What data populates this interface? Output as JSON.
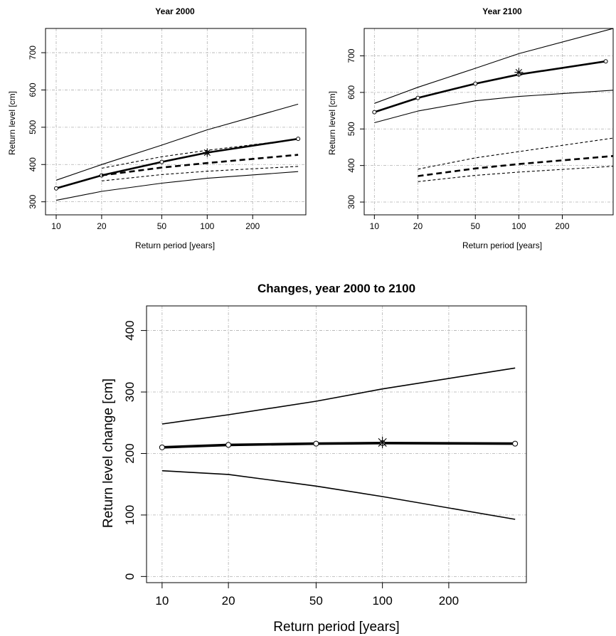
{
  "chart_data": [
    {
      "type": "line",
      "title": "Year 2000",
      "xlabel": "Return period [years]",
      "ylabel": "Return level [cm]",
      "xscale": "log",
      "xlim": [
        8.5,
        450
      ],
      "ylim": [
        265,
        765
      ],
      "xticks": [
        10,
        20,
        50,
        100,
        200
      ],
      "yticks": [
        300,
        400,
        500,
        600,
        700
      ],
      "grid": true,
      "series": [
        {
          "style": "thick-solid-circles",
          "x": [
            10,
            20,
            50,
            100,
            400
          ],
          "y": [
            336,
            371,
            407,
            432,
            469
          ]
        },
        {
          "style": "thin-solid",
          "x": [
            10,
            20,
            50,
            100,
            400
          ],
          "y": [
            358,
            400,
            452,
            493,
            562
          ]
        },
        {
          "style": "thin-solid",
          "x": [
            10,
            20,
            50,
            100,
            400
          ],
          "y": [
            304,
            328,
            350,
            363,
            381
          ]
        },
        {
          "style": "thick-dashed",
          "x": [
            20,
            50,
            100,
            400
          ],
          "y": [
            371,
            392,
            404,
            426
          ]
        },
        {
          "style": "thin-dashed",
          "x": [
            20,
            50,
            100,
            400
          ],
          "y": [
            390,
            421,
            438,
            468
          ]
        },
        {
          "style": "thin-dashed",
          "x": [
            20,
            50,
            100,
            400
          ],
          "y": [
            356,
            373,
            382,
            395
          ]
        }
      ],
      "marker": {
        "symbol": "asterisk",
        "x": 100,
        "y": 432
      }
    },
    {
      "type": "line",
      "title": "Year 2100",
      "xlabel": "Return period [years]",
      "ylabel": "Return level [cm]",
      "xscale": "log",
      "xlim": [
        8.5,
        450
      ],
      "ylim": [
        265,
        775
      ],
      "xticks": [
        10,
        20,
        50,
        100,
        200
      ],
      "yticks": [
        300,
        400,
        500,
        600,
        700
      ],
      "grid": true,
      "series": [
        {
          "style": "thick-solid-circles",
          "x": [
            10,
            20,
            50,
            100,
            400
          ],
          "y": [
            546,
            585,
            624,
            649,
            685
          ]
        },
        {
          "style": "thin-solid",
          "x": [
            10,
            20,
            50,
            100,
            450
          ],
          "y": [
            570,
            614,
            666,
            706,
            775
          ]
        },
        {
          "style": "thin-solid",
          "x": [
            10,
            20,
            50,
            100,
            450
          ],
          "y": [
            517,
            549,
            577,
            589,
            606
          ]
        },
        {
          "style": "thick-dashed",
          "x": [
            20,
            50,
            100,
            450
          ],
          "y": [
            371,
            392,
            404,
            426
          ]
        },
        {
          "style": "thin-dashed",
          "x": [
            20,
            50,
            100,
            450
          ],
          "y": [
            390,
            421,
            438,
            475
          ]
        },
        {
          "style": "thin-dashed",
          "x": [
            20,
            50,
            100,
            450
          ],
          "y": [
            356,
            373,
            382,
            398
          ]
        }
      ],
      "marker": {
        "symbol": "asterisk",
        "x": 100,
        "y": 655
      }
    },
    {
      "type": "line",
      "title": "Changes, year 2000 to 2100",
      "xlabel": "Return period [years]",
      "ylabel": "Return level change [cm]",
      "xscale": "log",
      "xlim": [
        8.5,
        450
      ],
      "ylim": [
        -10,
        440
      ],
      "xticks": [
        10,
        20,
        50,
        100,
        200
      ],
      "yticks": [
        0,
        100,
        200,
        300,
        400
      ],
      "grid": true,
      "series": [
        {
          "style": "thick-solid-circles",
          "x": [
            10,
            20,
            50,
            100,
            400
          ],
          "y": [
            210,
            214,
            216,
            217,
            216
          ]
        },
        {
          "style": "thin-solid",
          "x": [
            10,
            20,
            50,
            100,
            400
          ],
          "y": [
            248,
            263,
            285,
            305,
            339
          ]
        },
        {
          "style": "thin-solid",
          "x": [
            10,
            20,
            50,
            100,
            400
          ],
          "y": [
            172,
            166,
            147,
            130,
            93
          ]
        }
      ],
      "marker": {
        "symbol": "asterisk",
        "x": 100,
        "y": 218
      }
    }
  ]
}
